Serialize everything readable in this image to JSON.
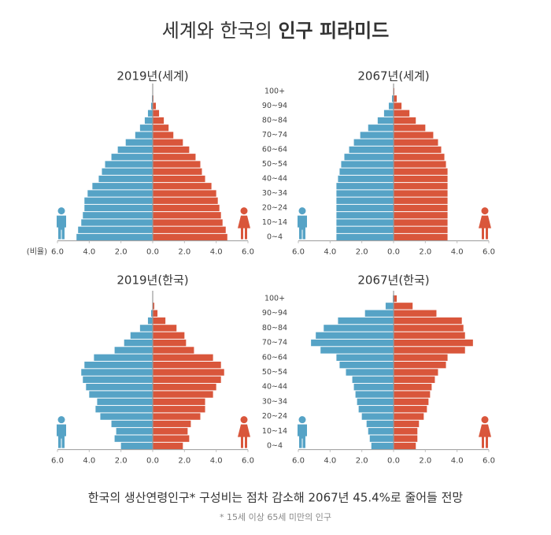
{
  "header": {
    "title_regular": "세계와 한국의 ",
    "title_bold": "인구 피라미드"
  },
  "footer": {
    "note": "한국의 생산연령인구* 구성비는 점차 감소해 2067년 45.4%로 줄어들 전망",
    "footnote": "* 15세 이상 65세 미만의 인구"
  },
  "chart_data": [
    {
      "type": "pyramid",
      "title": "2019년(세계)",
      "xlabel": "(비율)",
      "xlim": [
        -6,
        6
      ],
      "xticks": [
        {
          "value": -6,
          "label": "6.0"
        },
        {
          "value": -4,
          "label": "4.0"
        },
        {
          "value": -2,
          "label": "2.0"
        },
        {
          "value": 0,
          "label": "0.0"
        },
        {
          "value": 2,
          "label": "2.0"
        },
        {
          "value": 4,
          "label": "4.0"
        },
        {
          "value": 6,
          "label": "6.0"
        }
      ],
      "series": [
        {
          "color": "#56a3c6",
          "values": [
            -4.8,
            -4.7,
            -4.5,
            -4.4,
            -4.3,
            -4.3,
            -4.1,
            -3.8,
            -3.4,
            -3.2,
            -3.0,
            -2.6,
            -2.2,
            -1.7,
            -1.1,
            -0.8,
            -0.5,
            -0.3,
            -0.1,
            -0.05,
            -0.01
          ]
        },
        {
          "color": "#d9563b",
          "values": [
            4.7,
            4.6,
            4.4,
            4.3,
            4.2,
            4.1,
            4.0,
            3.7,
            3.3,
            3.1,
            3.0,
            2.7,
            2.3,
            1.9,
            1.3,
            1.0,
            0.7,
            0.4,
            0.2,
            0.05,
            0.01
          ]
        }
      ]
    },
    {
      "type": "pyramid",
      "title": "2067년(세계)",
      "categories": [
        "0~4",
        null,
        "10~14",
        null,
        "20~24",
        null,
        "30~34",
        null,
        "40~44",
        null,
        "50~54",
        null,
        "60~64",
        null,
        "70~74",
        null,
        "80~84",
        null,
        "90~94",
        null,
        "100+"
      ],
      "xlim": [
        -6,
        6
      ],
      "xticks": [
        {
          "value": -6,
          "label": "6.0"
        },
        {
          "value": -4,
          "label": "4.0"
        },
        {
          "value": -2,
          "label": "2.0"
        },
        {
          "value": 0,
          "label": "0.0"
        },
        {
          "value": 2,
          "label": "2.0"
        },
        {
          "value": 4,
          "label": "4.0"
        },
        {
          "value": 6,
          "label": "6.0"
        }
      ],
      "series": [
        {
          "color": "#56a3c6",
          "values": [
            -3.6,
            -3.6,
            -3.6,
            -3.6,
            -3.6,
            -3.6,
            -3.6,
            -3.6,
            -3.5,
            -3.4,
            -3.3,
            -3.1,
            -2.8,
            -2.5,
            -2.1,
            -1.6,
            -1.0,
            -0.6,
            -0.3,
            -0.1,
            -0.02
          ]
        },
        {
          "color": "#d9563b",
          "values": [
            3.4,
            3.4,
            3.4,
            3.4,
            3.4,
            3.4,
            3.4,
            3.4,
            3.4,
            3.4,
            3.3,
            3.2,
            3.0,
            2.8,
            2.5,
            2.0,
            1.4,
            1.0,
            0.5,
            0.2,
            0.05
          ]
        }
      ]
    },
    {
      "type": "pyramid",
      "title": "2019년(한국)",
      "xlim": [
        -6,
        6
      ],
      "xticks": [
        {
          "value": -6,
          "label": "6.0"
        },
        {
          "value": -4,
          "label": "4.0"
        },
        {
          "value": -2,
          "label": "2.0"
        },
        {
          "value": 0,
          "label": "0.0"
        },
        {
          "value": 2,
          "label": "2.0"
        },
        {
          "value": 4,
          "label": "4.0"
        },
        {
          "value": 6,
          "label": "6.0"
        }
      ],
      "series": [
        {
          "color": "#56a3c6",
          "values": [
            -2.0,
            -2.4,
            -2.3,
            -2.6,
            -3.3,
            -3.6,
            -3.5,
            -4.0,
            -4.2,
            -4.4,
            -4.5,
            -4.3,
            -3.7,
            -2.4,
            -1.8,
            -1.4,
            -0.8,
            -0.3,
            -0.1,
            -0.02,
            0
          ]
        },
        {
          "color": "#d9563b",
          "values": [
            1.9,
            2.3,
            2.2,
            2.4,
            3.0,
            3.3,
            3.3,
            3.8,
            4.0,
            4.3,
            4.5,
            4.3,
            3.8,
            2.6,
            2.1,
            2.0,
            1.5,
            0.8,
            0.3,
            0.1,
            0.02
          ]
        }
      ]
    },
    {
      "type": "pyramid",
      "title": "2067년(한국)",
      "categories": [
        "0~4",
        null,
        "10~14",
        null,
        "20~24",
        null,
        "30~34",
        null,
        "40~44",
        null,
        "50~54",
        null,
        "60~64",
        null,
        "70~74",
        null,
        "80~84",
        null,
        "90~94",
        null,
        "100+"
      ],
      "xlim": [
        -6,
        6
      ],
      "xticks": [
        {
          "value": -6,
          "label": "6.0"
        },
        {
          "value": -4,
          "label": "4.0"
        },
        {
          "value": -2,
          "label": "2.0"
        },
        {
          "value": 0,
          "label": "0.0"
        },
        {
          "value": 2,
          "label": "2.0"
        },
        {
          "value": 4,
          "label": "4.0"
        },
        {
          "value": 6,
          "label": "6.0"
        }
      ],
      "series": [
        {
          "color": "#56a3c6",
          "values": [
            -1.4,
            -1.5,
            -1.6,
            -1.7,
            -2.0,
            -2.2,
            -2.3,
            -2.4,
            -2.5,
            -2.6,
            -3.0,
            -3.4,
            -3.6,
            -4.6,
            -5.2,
            -4.9,
            -4.4,
            -3.5,
            -1.8,
            -0.5,
            -0.05
          ]
        },
        {
          "color": "#d9563b",
          "values": [
            1.4,
            1.5,
            1.5,
            1.6,
            1.9,
            2.1,
            2.2,
            2.3,
            2.4,
            2.6,
            2.8,
            3.3,
            3.4,
            4.5,
            5.0,
            4.5,
            4.4,
            4.3,
            2.7,
            1.2,
            0.2
          ]
        }
      ]
    }
  ]
}
